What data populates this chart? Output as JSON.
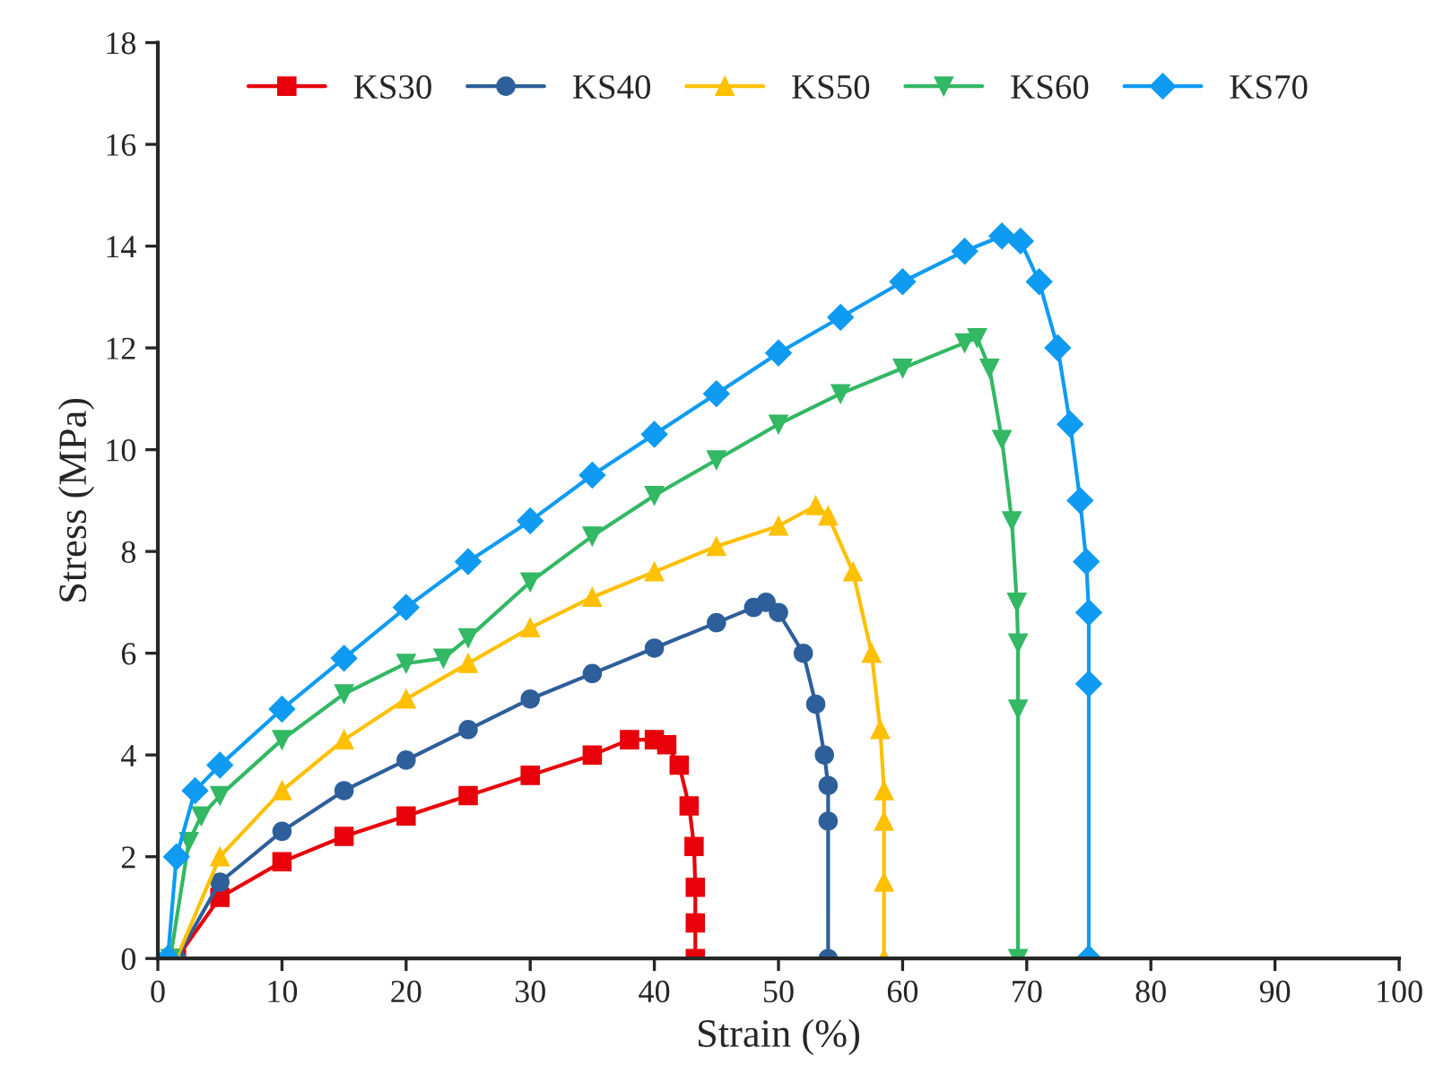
{
  "chart_data": {
    "type": "line",
    "xlabel": "Strain (%)",
    "ylabel": "Stress (MPa)",
    "xlim": [
      0,
      100
    ],
    "xticks": [
      0,
      10,
      20,
      30,
      40,
      50,
      60,
      70,
      80,
      90,
      100
    ],
    "ylim": [
      0,
      18
    ],
    "yticks": [
      0,
      2,
      4,
      6,
      8,
      10,
      12,
      14,
      16,
      18
    ],
    "grid": false,
    "legend": "top",
    "line_style": "solid",
    "series": [
      {
        "name": "KS30",
        "color": "#e8000b",
        "marker": "square",
        "x": [
          1.5,
          5,
          10,
          15,
          20,
          25,
          30,
          35,
          38,
          40,
          41,
          42,
          42.8,
          43.2,
          43.3,
          43.3,
          43.3
        ],
        "values": [
          0,
          1.2,
          1.9,
          2.4,
          2.8,
          3.2,
          3.6,
          4.0,
          4.3,
          4.3,
          4.2,
          3.8,
          3.0,
          2.2,
          1.4,
          0.7,
          0
        ]
      },
      {
        "name": "KS40",
        "color": "#2e5f9a",
        "marker": "circle",
        "x": [
          1.5,
          5,
          10,
          15,
          20,
          25,
          30,
          35,
          40,
          45,
          48,
          49,
          50,
          52,
          53,
          53.7,
          54,
          54,
          54
        ],
        "values": [
          0,
          1.5,
          2.5,
          3.3,
          3.9,
          4.5,
          5.1,
          5.6,
          6.1,
          6.6,
          6.9,
          7.0,
          6.8,
          6.0,
          5.0,
          4.0,
          3.4,
          2.7,
          0
        ]
      },
      {
        "name": "KS50",
        "color": "#ffc000",
        "marker": "triangle",
        "x": [
          1.5,
          5,
          10,
          15,
          20,
          25,
          30,
          35,
          40,
          45,
          50,
          53,
          54,
          56,
          57.5,
          58.2,
          58.5,
          58.5,
          58.5,
          58.5
        ],
        "values": [
          0,
          2.0,
          3.3,
          4.3,
          5.1,
          5.8,
          6.5,
          7.1,
          7.6,
          8.1,
          8.5,
          8.9,
          8.7,
          7.6,
          6.0,
          4.5,
          3.3,
          2.7,
          1.5,
          0
        ]
      },
      {
        "name": "KS60",
        "color": "#33b864",
        "marker": "triangle_down",
        "x": [
          1,
          2.5,
          3.5,
          5,
          10,
          15,
          20,
          23,
          25,
          30,
          35,
          40,
          45,
          50,
          55,
          60,
          65,
          66,
          67,
          68,
          68.8,
          69.2,
          69.3,
          69.3,
          69.3
        ],
        "values": [
          0,
          2.3,
          2.8,
          3.2,
          4.3,
          5.2,
          5.8,
          5.9,
          6.3,
          7.4,
          8.3,
          9.1,
          9.8,
          10.5,
          11.1,
          11.6,
          12.1,
          12.2,
          11.6,
          10.2,
          8.6,
          7.0,
          6.2,
          4.9,
          0
        ]
      },
      {
        "name": "KS70",
        "color": "#0f9bf2",
        "marker": "diamond",
        "x": [
          0.8,
          1.5,
          3,
          5,
          10,
          15,
          20,
          25,
          30,
          35,
          40,
          45,
          50,
          55,
          60,
          65,
          68,
          69.5,
          71,
          72.5,
          73.5,
          74.3,
          74.8,
          75,
          75,
          75
        ],
        "values": [
          0,
          2.0,
          3.3,
          3.8,
          4.9,
          5.9,
          6.9,
          7.8,
          8.6,
          9.5,
          10.3,
          11.1,
          11.9,
          12.6,
          13.3,
          13.9,
          14.2,
          14.1,
          13.3,
          12.0,
          10.5,
          9.0,
          7.8,
          6.8,
          5.4,
          0
        ]
      }
    ]
  }
}
